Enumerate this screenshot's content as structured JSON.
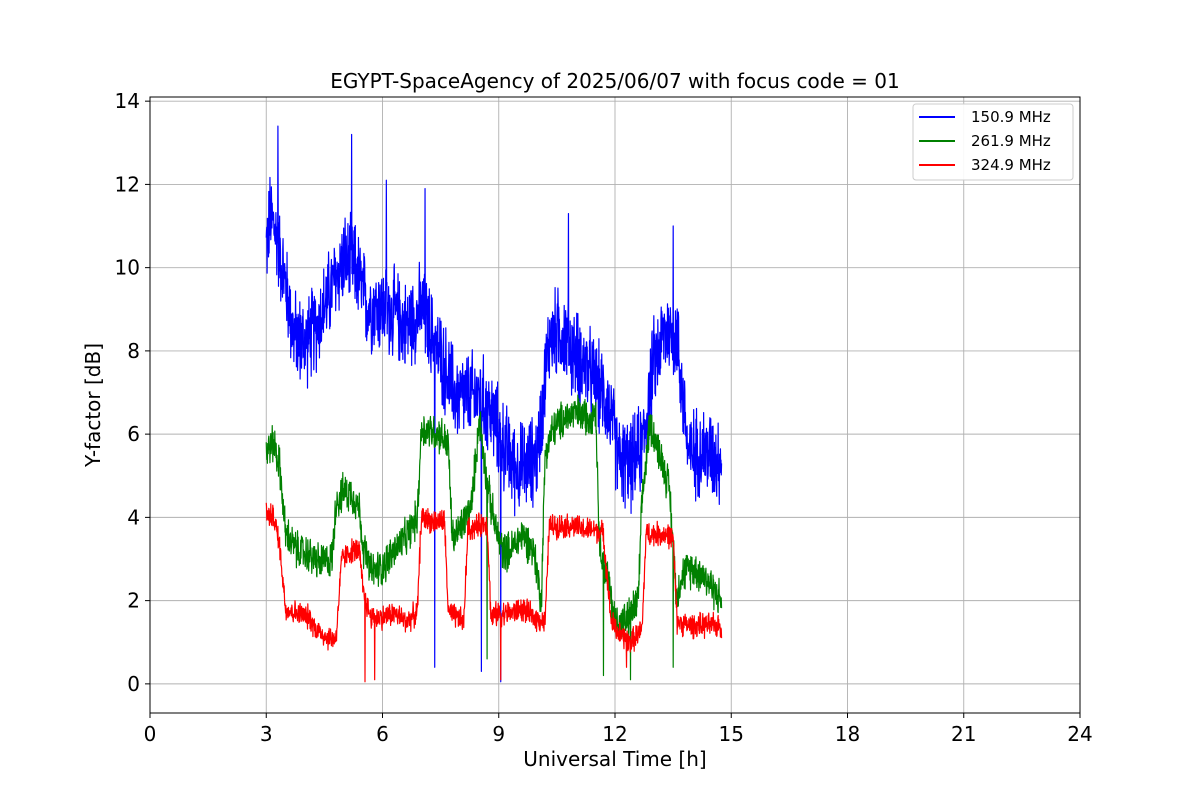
{
  "chart_data": {
    "type": "line",
    "title": "EGYPT-SpaceAgency of 2025/06/07 with focus code = 01",
    "xlabel": "Universal Time [h]",
    "ylabel": "Y-factor [dB]",
    "xlim": [
      0,
      24
    ],
    "ylim": [
      -0.7,
      14.1
    ],
    "xticks": [
      0,
      3,
      6,
      9,
      12,
      15,
      18,
      21,
      24
    ],
    "xtick_labels": [
      "0",
      "3",
      "6",
      "9",
      "12",
      "15",
      "18",
      "21",
      "24"
    ],
    "yticks": [
      0,
      2,
      4,
      6,
      8,
      10,
      12,
      14
    ],
    "ytick_labels": [
      "0",
      "2",
      "4",
      "6",
      "8",
      "10",
      "12",
      "14"
    ],
    "grid": true,
    "legend_position": "top-right",
    "series": [
      {
        "name": "150.9 MHz",
        "color": "#0000ff",
        "x": [
          3.0,
          3.1,
          3.2,
          3.3,
          3.5,
          3.7,
          4.0,
          4.3,
          4.6,
          5.0,
          5.3,
          5.6,
          6.0,
          6.3,
          6.6,
          7.0,
          7.3,
          7.6,
          7.9,
          8.2,
          8.5,
          8.8,
          9.1,
          9.4,
          9.7,
          10.0,
          10.3,
          10.6,
          10.9,
          11.2,
          11.5,
          11.8,
          12.1,
          12.4,
          12.7,
          13.0,
          13.3,
          13.6,
          13.9,
          14.2,
          14.5,
          14.75
        ],
        "values": [
          10.5,
          11.2,
          11.0,
          10.6,
          9.6,
          8.4,
          8.2,
          8.6,
          9.3,
          10.2,
          10.0,
          9.1,
          9.0,
          8.9,
          8.6,
          9.0,
          8.3,
          7.6,
          6.9,
          6.9,
          6.9,
          6.5,
          5.8,
          5.2,
          5.2,
          5.5,
          8.3,
          8.5,
          8.0,
          7.7,
          7.2,
          6.8,
          5.4,
          5.2,
          5.7,
          7.7,
          8.5,
          8.3,
          5.5,
          5.6,
          5.5,
          5.4
        ],
        "noise": 1.3,
        "spikes": [
          [
            3.3,
            13.4
          ],
          [
            5.2,
            13.2
          ],
          [
            6.1,
            12.1
          ],
          [
            7.1,
            11.9
          ],
          [
            7.35,
            0.4
          ],
          [
            9.05,
            0.05
          ],
          [
            10.8,
            11.3
          ],
          [
            13.5,
            11.0
          ],
          [
            8.55,
            0.3
          ]
        ]
      },
      {
        "name": "261.9 MHz",
        "color": "#008000",
        "x": [
          3.0,
          3.2,
          3.35,
          3.5,
          3.8,
          4.1,
          4.4,
          4.7,
          4.8,
          5.0,
          5.2,
          5.4,
          5.5,
          5.7,
          6.0,
          6.3,
          6.6,
          6.9,
          7.0,
          7.2,
          7.5,
          7.7,
          7.8,
          8.0,
          8.3,
          8.5,
          8.7,
          8.9,
          9.1,
          9.3,
          9.6,
          9.9,
          10.1,
          10.2,
          10.4,
          10.7,
          11.0,
          11.3,
          11.5,
          11.6,
          11.8,
          12.0,
          12.3,
          12.6,
          12.7,
          12.9,
          13.2,
          13.4,
          13.6,
          13.7,
          14.0,
          14.3,
          14.75
        ],
        "values": [
          5.6,
          5.8,
          5.2,
          3.6,
          3.2,
          3.1,
          2.9,
          3.0,
          4.4,
          4.6,
          4.6,
          4.2,
          3.3,
          2.7,
          2.8,
          3.2,
          3.5,
          4.0,
          6.1,
          6.1,
          6.0,
          5.7,
          3.5,
          3.7,
          4.3,
          6.4,
          4.8,
          3.8,
          3.2,
          3.2,
          3.6,
          3.2,
          2.0,
          5.6,
          6.1,
          6.4,
          6.5,
          6.4,
          6.6,
          3.4,
          2.6,
          1.5,
          1.5,
          2.0,
          4.4,
          6.3,
          5.4,
          4.7,
          2.0,
          2.6,
          2.8,
          2.6,
          2.0
        ],
        "noise": 0.55,
        "spikes": [
          [
            11.7,
            0.2
          ],
          [
            12.4,
            0.1
          ],
          [
            8.7,
            0.6
          ],
          [
            13.5,
            0.4
          ]
        ]
      },
      {
        "name": "324.9 MHz",
        "color": "#ff0000",
        "x": [
          3.0,
          3.2,
          3.35,
          3.5,
          3.8,
          4.1,
          4.3,
          4.6,
          4.8,
          4.95,
          5.2,
          5.4,
          5.5,
          5.7,
          6.0,
          6.3,
          6.6,
          6.9,
          7.0,
          7.3,
          7.6,
          7.7,
          7.9,
          8.1,
          8.2,
          8.5,
          8.7,
          8.8,
          9.0,
          9.3,
          9.6,
          9.9,
          10.2,
          10.3,
          10.6,
          10.9,
          11.2,
          11.5,
          11.7,
          11.9,
          12.1,
          12.4,
          12.7,
          12.8,
          13.0,
          13.3,
          13.5,
          13.6,
          13.9,
          14.2,
          14.75
        ],
        "values": [
          4.1,
          4.0,
          3.3,
          1.8,
          1.7,
          1.6,
          1.3,
          1.1,
          1.1,
          3.0,
          3.2,
          3.2,
          2.2,
          1.6,
          1.6,
          1.7,
          1.5,
          1.7,
          4.0,
          3.9,
          3.9,
          1.7,
          1.6,
          1.5,
          3.7,
          3.8,
          3.9,
          1.6,
          1.7,
          1.7,
          1.8,
          1.6,
          1.5,
          3.8,
          3.8,
          3.8,
          3.7,
          3.7,
          3.6,
          1.5,
          1.2,
          1.0,
          1.3,
          3.6,
          3.6,
          3.6,
          3.5,
          1.5,
          1.4,
          1.4,
          1.4
        ],
        "noise": 0.35,
        "spikes": [
          [
            5.55,
            0.05
          ],
          [
            5.8,
            0.1
          ],
          [
            9.05,
            0.1
          ],
          [
            12.3,
            0.4
          ]
        ]
      }
    ]
  }
}
